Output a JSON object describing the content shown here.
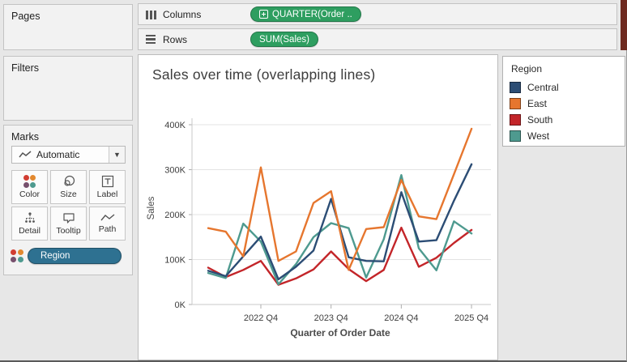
{
  "colors": {
    "window_bg": "#e7e7e7",
    "field_pill_green": "#2e9e60",
    "dimension_pill_blue": "#2e7191",
    "showme_strip_maroon": "#6e2a20",
    "gridline": "#e3e3e3",
    "axis_line": "#c9c9c9"
  },
  "icons": {
    "color_dots": [
      "#d13d32",
      "#e2882e",
      "#77506d",
      "#4e9a8f"
    ]
  },
  "shelves": {
    "columns_label": "Columns",
    "columns_pill": "QUARTER(Order ..",
    "rows_label": "Rows",
    "rows_pill": "SUM(Sales)"
  },
  "panels": {
    "pages_label": "Pages",
    "filters_label": "Filters",
    "marks": {
      "label": "Marks",
      "mark_type": "Automatic",
      "buttons": [
        {
          "label": "Color"
        },
        {
          "label": "Size"
        },
        {
          "label": "Label"
        },
        {
          "label": "Detail"
        },
        {
          "label": "Tooltip"
        },
        {
          "label": "Path"
        }
      ],
      "region_pill": "Region"
    }
  },
  "legend": {
    "title": "Region",
    "items": [
      {
        "label": "Central",
        "color": "#2c4d75"
      },
      {
        "label": "East",
        "color": "#e6762e"
      },
      {
        "label": "South",
        "color": "#c32529"
      },
      {
        "label": "West",
        "color": "#4e9a8f"
      }
    ]
  },
  "chart_data": {
    "type": "line",
    "title": "Sales over time (overlapping lines)",
    "xlabel": "Quarter of Order Date",
    "ylabel": "Sales",
    "unit": "thousands",
    "ylim": [
      0,
      400000
    ],
    "ytick_labels": [
      "0K",
      "100K",
      "200K",
      "300K",
      "400K"
    ],
    "x_quarters": [
      "2022 Q1",
      "2022 Q2",
      "2022 Q3",
      "2022 Q4",
      "2023 Q1",
      "2023 Q2",
      "2023 Q3",
      "2023 Q4",
      "2024 Q1",
      "2024 Q2",
      "2024 Q3",
      "2024 Q4",
      "2025 Q1",
      "2025 Q2",
      "2025 Q3",
      "2025 Q4"
    ],
    "xtick_labels": [
      "2022 Q4",
      "2023 Q4",
      "2024 Q4",
      "2025 Q4"
    ],
    "xtick_indices": [
      3,
      7,
      11,
      15
    ],
    "grid": "horizontal",
    "legend_position": "right",
    "series": [
      {
        "name": "Central",
        "color": "#2c4d75",
        "values_k": [
          75,
          63,
          107,
          151,
          56,
          84,
          120,
          235,
          105,
          97,
          96,
          250,
          140,
          143,
          231,
          312
        ]
      },
      {
        "name": "East",
        "color": "#e6762e",
        "values_k": [
          170,
          162,
          107,
          305,
          97,
          118,
          226,
          252,
          77,
          168,
          172,
          277,
          196,
          190,
          290,
          391
        ]
      },
      {
        "name": "South",
        "color": "#c32529",
        "values_k": [
          82,
          61,
          77,
          97,
          44,
          58,
          78,
          118,
          79,
          52,
          77,
          171,
          84,
          104,
          137,
          166
        ]
      },
      {
        "name": "West",
        "color": "#4e9a8f",
        "values_k": [
          70,
          59,
          180,
          140,
          45,
          90,
          150,
          181,
          170,
          60,
          145,
          288,
          125,
          76,
          185,
          158
        ]
      }
    ],
    "z_order": [
      "South",
      "West",
      "Central",
      "East"
    ]
  }
}
